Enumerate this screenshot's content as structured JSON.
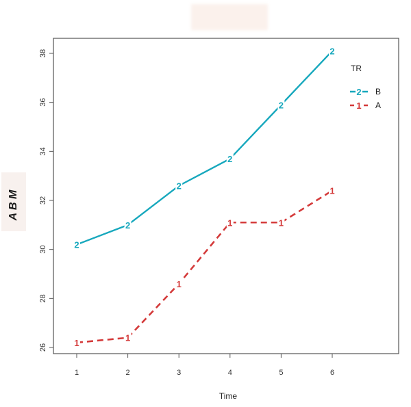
{
  "chart_data": {
    "type": "line",
    "title": "",
    "xlabel": "Time",
    "ylabel": "A B M",
    "x": [
      1,
      2,
      3,
      4,
      5,
      6
    ],
    "xticks": [
      "1",
      "2",
      "3",
      "4",
      "5",
      "6"
    ],
    "yticks": [
      "26",
      "28",
      "30",
      "32",
      "34",
      "36",
      "38"
    ],
    "ylim": [
      26,
      38
    ],
    "grid": false,
    "legend": {
      "title": "TR",
      "position": "top-right",
      "entries": [
        {
          "label": "B",
          "symbol": "2"
        },
        {
          "label": "A",
          "symbol": "1"
        }
      ]
    },
    "series": [
      {
        "name": "B",
        "symbol": "2",
        "color": "#17a8bd",
        "line_style": "solid",
        "values": [
          30.2,
          31.0,
          32.6,
          33.7,
          35.9,
          38.1
        ]
      },
      {
        "name": "A",
        "symbol": "1",
        "color": "#d43a3a",
        "line_style": "dashed",
        "values": [
          26.2,
          26.4,
          28.6,
          31.1,
          31.1,
          32.4
        ]
      }
    ]
  }
}
